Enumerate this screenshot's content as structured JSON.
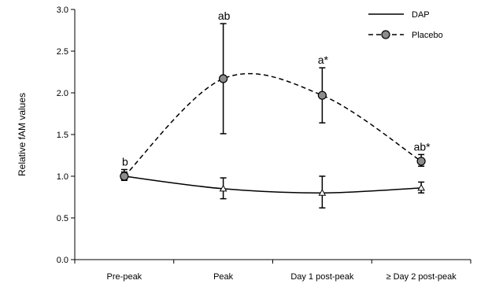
{
  "chart_data": {
    "type": "line",
    "title": "",
    "xlabel": "",
    "ylabel": "Relative fAM values",
    "categories": [
      "Pre-peak",
      "Peak",
      "Day 1 post-peak",
      "≥ Day 2 post-peak"
    ],
    "ylim": [
      0,
      3
    ],
    "yticks": [
      "0.0",
      "0.5",
      "1.0",
      "1.5",
      "2.0",
      "2.5",
      "3.0"
    ],
    "grid": false,
    "legend_position": "top-right",
    "series": [
      {
        "name": "DAP",
        "values": [
          1.0,
          0.85,
          0.8,
          0.86
        ],
        "err_low": [
          0.95,
          0.73,
          0.62,
          0.8
        ],
        "err_high": [
          1.05,
          0.98,
          1.0,
          0.93
        ],
        "color": "#000000",
        "line_style": "solid",
        "marker": "triangle-open"
      },
      {
        "name": "Placebo",
        "values": [
          1.0,
          2.17,
          1.97,
          1.18
        ],
        "err_low": [
          0.96,
          1.51,
          1.64,
          1.12
        ],
        "err_high": [
          1.08,
          2.83,
          2.3,
          1.26
        ],
        "color": "#000000",
        "marker_fill": "#8c8c8c",
        "line_style": "dashed",
        "marker": "circle-filled"
      }
    ],
    "annotations": [
      {
        "category": "Pre-peak",
        "text": "b"
      },
      {
        "category": "Peak",
        "text": "ab"
      },
      {
        "category": "Day 1 post-peak",
        "text": "a*"
      },
      {
        "category": "≥ Day 2 post-peak",
        "text": "ab*"
      }
    ]
  }
}
